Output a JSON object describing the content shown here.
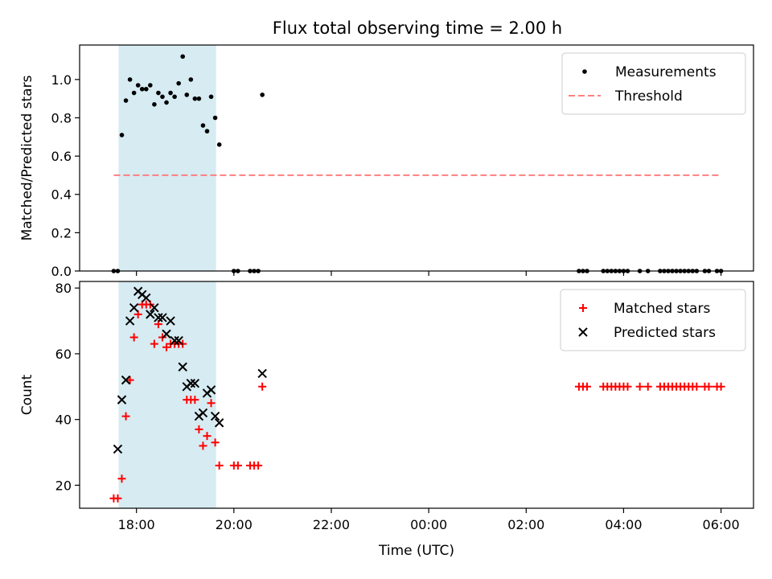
{
  "chart_data": [
    {
      "type": "scatter",
      "title": "Flux total observing time = 2.00 h",
      "xlabel": "",
      "ylabel": "Matched/Predicted stars",
      "ylim": [
        0,
        1.18
      ],
      "yticks": [
        0.0,
        0.2,
        0.4,
        0.6,
        0.8,
        1.0
      ],
      "ytick_labels": [
        "0.0",
        "0.2",
        "0.4",
        "0.6",
        "0.8",
        "1.0"
      ],
      "legend": "top-right",
      "highlight_span": {
        "x0": "17:38",
        "x1": "19:38",
        "color": "#add8e6"
      },
      "series": [
        {
          "name": "Measurements",
          "marker": "dot",
          "color": "#000000",
          "x": [
            "17:32",
            "17:37",
            "17:42",
            "17:47",
            "17:52",
            "17:57",
            "18:02",
            "18:07",
            "18:12",
            "18:17",
            "18:22",
            "18:27",
            "18:32",
            "18:37",
            "18:42",
            "18:47",
            "18:52",
            "18:57",
            "19:02",
            "19:07",
            "19:12",
            "19:17",
            "19:22",
            "19:27",
            "19:32",
            "19:37",
            "19:42",
            "20:00",
            "20:05",
            "20:20",
            "20:25",
            "20:30",
            "20:35",
            "03:05",
            "03:10",
            "03:15",
            "03:35",
            "03:40",
            "03:45",
            "03:50",
            "03:55",
            "04:00",
            "04:05",
            "04:20",
            "04:30",
            "04:45",
            "04:50",
            "04:55",
            "05:00",
            "05:05",
            "05:10",
            "05:15",
            "05:20",
            "05:25",
            "05:30",
            "05:40",
            "05:45",
            "05:55",
            "06:00"
          ],
          "y": [
            0,
            0,
            0.71,
            0.89,
            1.0,
            0.93,
            0.97,
            0.95,
            0.95,
            0.97,
            0.87,
            0.93,
            0.91,
            0.88,
            0.93,
            0.91,
            0.98,
            1.12,
            0.92,
            1.0,
            0.9,
            0.9,
            0.76,
            0.73,
            0.91,
            0.8,
            0.66,
            0,
            0,
            0,
            0,
            0,
            0.92,
            0,
            0,
            0,
            0,
            0,
            0,
            0,
            0,
            0,
            0,
            0,
            0,
            0,
            0,
            0,
            0,
            0,
            0,
            0,
            0,
            0,
            0,
            0,
            0,
            0,
            0
          ]
        },
        {
          "name": "Threshold",
          "marker": "dashed-line",
          "color": "#ff7f7f",
          "x": [
            "17:32",
            "06:00"
          ],
          "y": [
            0.5,
            0.5
          ]
        }
      ]
    },
    {
      "type": "scatter",
      "title": "",
      "xlabel": "Time (UTC)",
      "ylabel": "Count",
      "ylim": [
        13,
        82
      ],
      "yticks": [
        20,
        40,
        60,
        80
      ],
      "ytick_labels": [
        "20",
        "40",
        "60",
        "80"
      ],
      "xticks": [
        "18:00",
        "20:00",
        "22:00",
        "00:00",
        "02:00",
        "04:00",
        "06:00"
      ],
      "xlim": [
        "16:50",
        "06:40"
      ],
      "legend": "top-right",
      "highlight_span": {
        "x0": "17:38",
        "x1": "19:38",
        "color": "#add8e6"
      },
      "series": [
        {
          "name": "Matched stars",
          "marker": "plus",
          "color": "#ff0000",
          "x": [
            "17:32",
            "17:37",
            "17:42",
            "17:47",
            "17:52",
            "17:57",
            "18:02",
            "18:07",
            "18:12",
            "18:17",
            "18:22",
            "18:27",
            "18:32",
            "18:37",
            "18:42",
            "18:47",
            "18:52",
            "18:57",
            "19:02",
            "19:07",
            "19:12",
            "19:17",
            "19:22",
            "19:27",
            "19:32",
            "19:37",
            "19:42",
            "20:00",
            "20:05",
            "20:20",
            "20:25",
            "20:30",
            "20:35",
            "03:05",
            "03:10",
            "03:15",
            "03:35",
            "03:40",
            "03:45",
            "03:50",
            "03:55",
            "04:00",
            "04:05",
            "04:20",
            "04:30",
            "04:45",
            "04:50",
            "04:55",
            "05:00",
            "05:05",
            "05:10",
            "05:15",
            "05:20",
            "05:25",
            "05:30",
            "05:40",
            "05:45",
            "05:55",
            "06:00"
          ],
          "y": [
            16,
            16,
            22,
            41,
            52,
            65,
            72,
            75,
            75,
            75,
            63,
            69,
            65,
            62,
            63,
            63,
            63,
            63,
            46,
            46,
            46,
            37,
            32,
            35,
            45,
            33,
            26,
            26,
            26,
            26,
            26,
            26,
            50,
            50,
            50,
            50,
            50,
            50,
            50,
            50,
            50,
            50,
            50,
            50,
            50,
            50,
            50,
            50,
            50,
            50,
            50,
            50,
            50,
            50,
            50,
            50,
            50,
            50,
            50
          ]
        },
        {
          "name": "Predicted stars",
          "marker": "x",
          "color": "#000000",
          "x": [
            "17:37",
            "17:42",
            "17:47",
            "17:52",
            "17:57",
            "18:02",
            "18:07",
            "18:12",
            "18:17",
            "18:22",
            "18:27",
            "18:32",
            "18:37",
            "18:42",
            "18:47",
            "18:52",
            "18:57",
            "19:02",
            "19:07",
            "19:12",
            "19:17",
            "19:22",
            "19:27",
            "19:32",
            "19:37",
            "19:42",
            "20:35"
          ],
          "y": [
            31,
            46,
            52,
            70,
            74,
            79,
            78,
            77,
            72,
            74,
            71,
            71,
            66,
            70,
            64,
            64,
            56,
            50,
            51,
            51,
            41,
            42,
            48,
            49,
            41,
            39,
            54
          ]
        }
      ]
    }
  ]
}
